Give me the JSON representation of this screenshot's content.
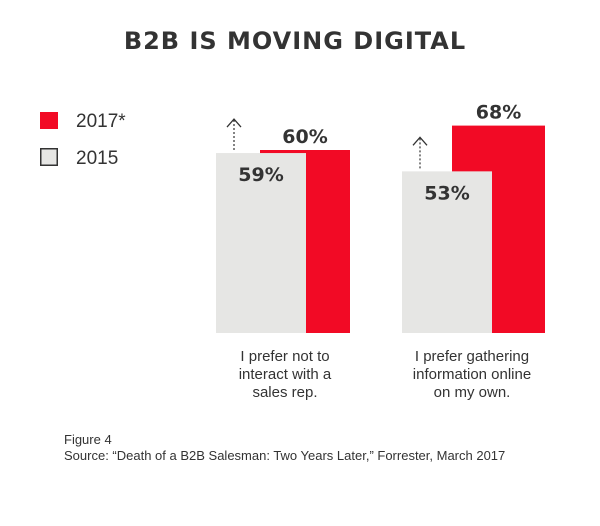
{
  "chart_data": {
    "type": "bar",
    "title": "B2B IS MOVING DIGITAL",
    "categories": [
      [
        "I prefer not to",
        "interact with a",
        "sales rep."
      ],
      [
        "I prefer gathering",
        "information online",
        "on my own."
      ]
    ],
    "series": [
      {
        "name": "2015",
        "values": [
          59,
          53
        ],
        "value_labels": [
          "59%",
          "53%"
        ],
        "color": "#e6e6e4"
      },
      {
        "name": "2017*",
        "values": [
          60,
          68
        ],
        "value_labels": [
          "60%",
          "68%"
        ],
        "color": "#f20a25"
      }
    ],
    "ylim": [
      0,
      100
    ],
    "legend_position": "top-left",
    "grid": false,
    "annotation_icon": "up-arrow-icon"
  },
  "figure_label": "Figure 4",
  "source": "Source: “Death of a B2B Salesman: Two Years Later,” Forrester, March 2017"
}
